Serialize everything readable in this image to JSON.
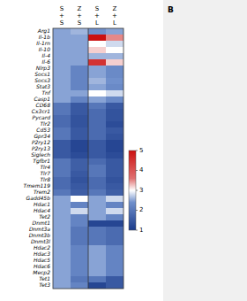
{
  "chart_data": {
    "type": "heatmap",
    "rows": [
      "Arg1",
      "Il-1b",
      "Il-1rn",
      "Il-10",
      "Il-4",
      "Il-6",
      "Nlrp3",
      "Socs1",
      "Socs3",
      "Stat3",
      "Tnf",
      "Casp1",
      "CD68",
      "Cx3cr1",
      "Pycard",
      "Tlr2",
      "Cd53",
      "Gpr34",
      "P2ry12",
      "P2ry13",
      "Siglech",
      "Tgfbr1",
      "Tlr4",
      "Tlr7",
      "Tlr8",
      "Tmem119",
      "Trem2",
      "Gadd45b",
      "Hdac1",
      "Hdac4",
      "Tet2",
      "Dnmt1",
      "Dnmt3a",
      "Dnmt3b",
      "Dnmt3l",
      "Hdac2",
      "Hdac3",
      "Hdac5",
      "Hdac6",
      "Mecp2",
      "Tet1",
      "Tet3"
    ],
    "column_headers": [
      [
        "S",
        "Z",
        "S",
        "Z"
      ],
      [
        "+",
        "+",
        "+",
        "+"
      ],
      [
        "S",
        "S",
        "L",
        "L"
      ]
    ],
    "values": [
      [
        2.5,
        2.6,
        2.4,
        2.5
      ],
      [
        2.5,
        2.5,
        5.0,
        3.5
      ],
      [
        2.5,
        2.5,
        3.0,
        2.8
      ],
      [
        2.5,
        2.5,
        3.2,
        3.0
      ],
      [
        2.5,
        2.5,
        2.6,
        2.6
      ],
      [
        2.5,
        2.5,
        4.5,
        3.2
      ],
      [
        2.5,
        2.2,
        2.5,
        2.3
      ],
      [
        2.5,
        2.2,
        2.5,
        2.3
      ],
      [
        2.5,
        2.2,
        2.6,
        2.4
      ],
      [
        2.5,
        2.2,
        2.5,
        2.3
      ],
      [
        2.5,
        2.5,
        3.0,
        2.8
      ],
      [
        2.5,
        2.2,
        2.5,
        2.3
      ],
      [
        2.0,
        1.5,
        2.0,
        1.5
      ],
      [
        2.0,
        1.5,
        1.8,
        1.4
      ],
      [
        1.8,
        1.4,
        1.8,
        1.4
      ],
      [
        1.8,
        1.4,
        1.8,
        1.3
      ],
      [
        2.0,
        1.5,
        1.8,
        1.5
      ],
      [
        2.0,
        1.5,
        1.8,
        1.4
      ],
      [
        1.5,
        1.2,
        1.5,
        1.2
      ],
      [
        1.5,
        1.2,
        1.5,
        1.2
      ],
      [
        1.5,
        1.3,
        1.5,
        1.3
      ],
      [
        2.0,
        1.6,
        1.8,
        1.5
      ],
      [
        2.0,
        1.6,
        2.0,
        1.5
      ],
      [
        2.0,
        1.5,
        2.0,
        1.5
      ],
      [
        1.8,
        1.4,
        1.8,
        1.4
      ],
      [
        1.8,
        1.5,
        1.8,
        1.5
      ],
      [
        2.0,
        1.6,
        2.0,
        1.6
      ],
      [
        2.5,
        3.0,
        2.5,
        2.8
      ],
      [
        2.5,
        2.2,
        2.5,
        2.2
      ],
      [
        2.5,
        2.8,
        2.5,
        2.8
      ],
      [
        2.5,
        2.2,
        2.5,
        2.2
      ],
      [
        2.5,
        2.2,
        1.2,
        1.2
      ],
      [
        2.5,
        2.0,
        2.0,
        1.8
      ],
      [
        2.5,
        2.0,
        2.0,
        1.8
      ],
      [
        2.5,
        2.0,
        2.0,
        1.8
      ],
      [
        2.5,
        2.2,
        2.5,
        2.2
      ],
      [
        2.5,
        2.2,
        2.5,
        2.2
      ],
      [
        2.5,
        2.2,
        2.5,
        2.2
      ],
      [
        2.5,
        2.2,
        2.5,
        2.2
      ],
      [
        2.5,
        2.2,
        2.5,
        2.2
      ],
      [
        2.5,
        2.0,
        2.0,
        1.5
      ],
      [
        2.5,
        2.2,
        1.2,
        1.5
      ]
    ],
    "color_range": [
      1,
      5
    ],
    "color_ticks": [
      1,
      2,
      3,
      4,
      5
    ],
    "colormap": [
      [
        0.0,
        "#1a3a8a"
      ],
      [
        0.35,
        "#7090cc"
      ],
      [
        0.5,
        "#ffffff"
      ],
      [
        0.65,
        "#e07070"
      ],
      [
        1.0,
        "#cc1010"
      ]
    ],
    "annotations": [
      "B"
    ]
  }
}
